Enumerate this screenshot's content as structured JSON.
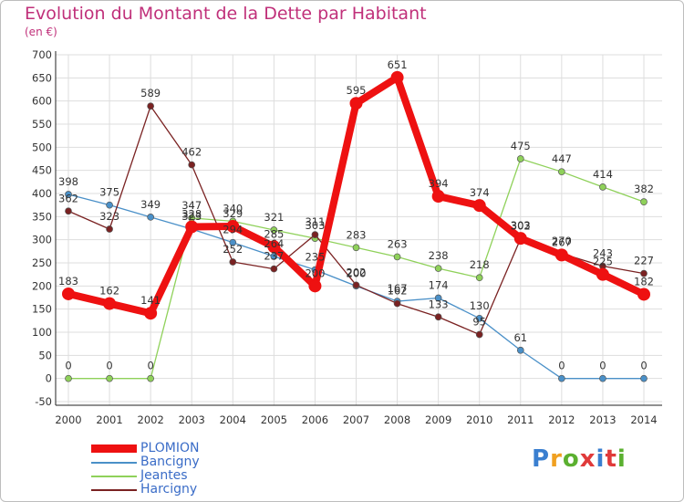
{
  "title": "Evolution du Montant de la Dette par Habitant",
  "subtitle": "(en €)",
  "logo": "Proxiti",
  "chart_data": {
    "type": "line",
    "categories": [
      "2000",
      "2001",
      "2002",
      "2003",
      "2004",
      "2005",
      "2006",
      "2007",
      "2008",
      "2009",
      "2010",
      "2011",
      "2012",
      "2013",
      "2014"
    ],
    "ylim": [
      -50,
      700
    ],
    "yticks": [
      -50,
      0,
      50,
      100,
      150,
      200,
      250,
      300,
      350,
      400,
      450,
      500,
      550,
      600,
      650,
      700
    ],
    "grid": true,
    "legend_position": "bottom-left",
    "series": [
      {
        "name": "Bancigny",
        "color": "#4a90c8",
        "values": [
          398,
          375,
          349,
          323,
          294,
          264,
          235,
          200,
          167,
          174,
          130,
          61,
          0,
          0,
          0
        ]
      },
      {
        "name": "Jeantes",
        "color": "#8fd15a",
        "values": [
          0,
          0,
          0,
          347,
          340,
          321,
          303,
          283,
          263,
          238,
          218,
          475,
          447,
          414,
          382
        ]
      },
      {
        "name": "Harcigny",
        "color": "#7a2222",
        "values": [
          362,
          323,
          589,
          462,
          252,
          237,
          311,
          202,
          162,
          133,
          95,
          302,
          270,
          243,
          227
        ]
      },
      {
        "name": "PLOMION",
        "color": "#ee1111",
        "values": [
          183,
          162,
          141,
          328,
          329,
          285,
          200,
          595,
          651,
          394,
          374,
          303,
          267,
          225,
          182
        ]
      }
    ]
  },
  "legend": [
    {
      "name": "PLOMION",
      "color": "#ee1111"
    },
    {
      "name": "Bancigny",
      "color": "#4a90c8"
    },
    {
      "name": "Jeantes",
      "color": "#8fd15a"
    },
    {
      "name": "Harcigny",
      "color": "#7a2222"
    }
  ]
}
